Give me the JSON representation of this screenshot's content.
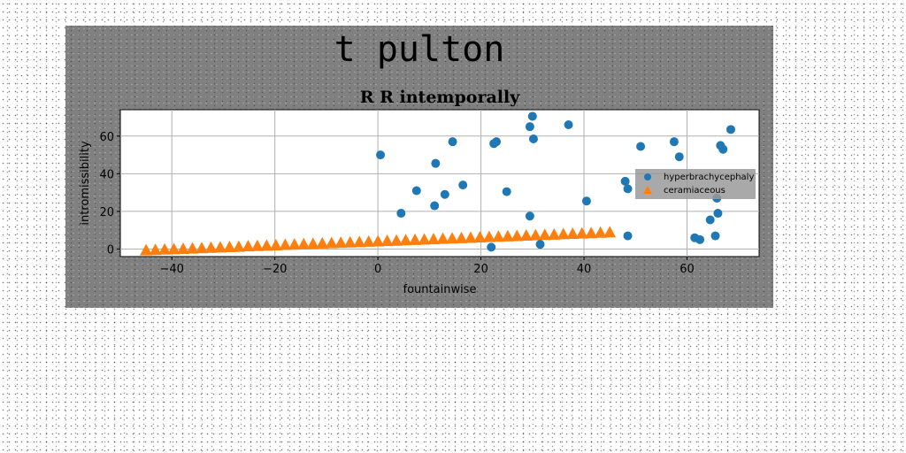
{
  "page": {
    "suptitle": "t pulton"
  },
  "chart_data": {
    "type": "scatter",
    "title": "R R intemporally",
    "xlabel": "fountainwise",
    "ylabel": "intromissibility",
    "xlim": [
      -50,
      74
    ],
    "ylim": [
      -4,
      74
    ],
    "xticks": [
      -40,
      -20,
      0,
      20,
      40,
      60
    ],
    "yticks": [
      0,
      20,
      40,
      60
    ],
    "grid": true,
    "legend_position": "center-right",
    "series": [
      {
        "name": "hyperbrachycephaly",
        "marker": "circle",
        "color": "#1f77b4",
        "points": [
          [
            0.5,
            50
          ],
          [
            4.5,
            19
          ],
          [
            7.5,
            31
          ],
          [
            11,
            23
          ],
          [
            11.2,
            45.5
          ],
          [
            13,
            29
          ],
          [
            14.5,
            57
          ],
          [
            16.5,
            34
          ],
          [
            22,
            1
          ],
          [
            22.5,
            56
          ],
          [
            23,
            57
          ],
          [
            25,
            30.5
          ],
          [
            29.5,
            17.5
          ],
          [
            29.5,
            65
          ],
          [
            30,
            70.5
          ],
          [
            30.2,
            58.5
          ],
          [
            31.5,
            2.5
          ],
          [
            37,
            66
          ],
          [
            40.5,
            25.5
          ],
          [
            48,
            36
          ],
          [
            48.5,
            32
          ],
          [
            48.5,
            7
          ],
          [
            51,
            54.5
          ],
          [
            57.5,
            57
          ],
          [
            58.5,
            49
          ],
          [
            61.5,
            6
          ],
          [
            62.5,
            5
          ],
          [
            64.5,
            15.5
          ],
          [
            65.5,
            7
          ],
          [
            65.8,
            27
          ],
          [
            66,
            19
          ],
          [
            66.5,
            55
          ],
          [
            67,
            53
          ],
          [
            68.5,
            63.5
          ]
        ]
      },
      {
        "name": "ceramiaceous",
        "marker": "triangle",
        "color": "#ff7f0e",
        "x_start": -45,
        "x_end": 45,
        "y_start": -1,
        "y_end": 8.5,
        "n_points": 51
      }
    ]
  }
}
